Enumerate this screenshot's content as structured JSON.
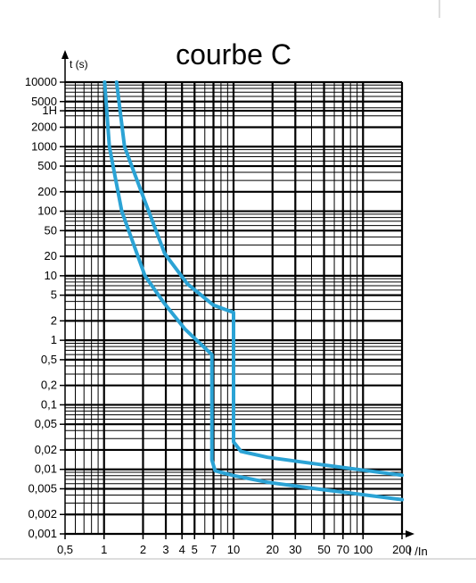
{
  "chart_data": {
    "type": "line",
    "title": "courbe C",
    "y_label": "t (s)",
    "x_label": "I /In",
    "x_log": true,
    "y_log": true,
    "grid": true,
    "minor_grid": true,
    "xlim": [
      0.5,
      200
    ],
    "ylim": [
      0.001,
      10000
    ],
    "xticks": [
      {
        "value": 0.5,
        "label": "0,5"
      },
      1,
      2,
      3,
      4,
      5,
      7,
      10,
      20,
      30,
      50,
      70,
      100,
      200
    ],
    "yticks": [
      {
        "value": 0.001,
        "label": "0,001"
      },
      {
        "value": 0.002,
        "label": "0,002"
      },
      {
        "value": 0.005,
        "label": "0,005"
      },
      {
        "value": 0.01,
        "label": "0,01"
      },
      {
        "value": 0.02,
        "label": "0,02"
      },
      {
        "value": 0.05,
        "label": "0,05"
      },
      {
        "value": 0.1,
        "label": "0,1"
      },
      {
        "value": 0.2,
        "label": "0,2"
      },
      {
        "value": 0.5,
        "label": "0,5"
      },
      1,
      2,
      5,
      10,
      20,
      50,
      100,
      200,
      500,
      1000,
      2000,
      {
        "value": 3600,
        "label": "1H"
      },
      5000,
      10000
    ],
    "series": [
      {
        "color": "#2ba3d5",
        "x": [
          1.01,
          1.1,
          1.37,
          2.07,
          2.9,
          4.2,
          6.8,
          6.8,
          7.2,
          10,
          18.3,
          47,
          200
        ],
        "values": [
          10000,
          1000,
          100,
          10,
          3.8,
          1.5,
          0.6,
          0.014,
          0.0095,
          0.008,
          0.0063,
          0.0049,
          0.0034
        ]
      },
      {
        "color": "#2ba3d5",
        "x": [
          1.25,
          1.44,
          1.98,
          2.94,
          4.4,
          7.0,
          10,
          10,
          11.4,
          18.3,
          47,
          200
        ],
        "values": [
          10000,
          1000,
          180,
          22,
          7.5,
          3.5,
          2.7,
          0.0266,
          0.019,
          0.0154,
          0.0119,
          0.0081
        ]
      }
    ]
  }
}
